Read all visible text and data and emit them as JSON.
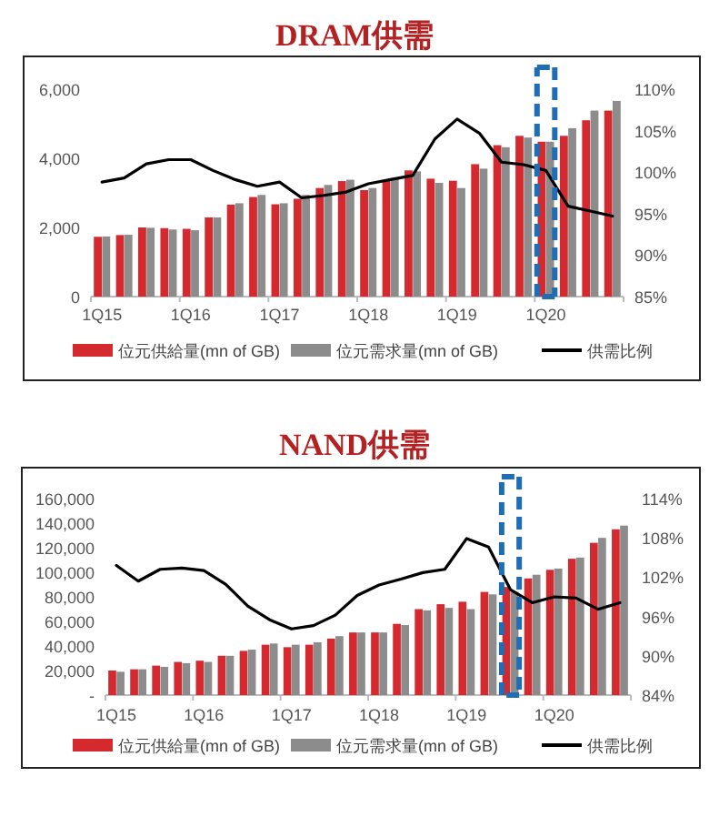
{
  "chart_data": [
    {
      "type": "bar",
      "title": "DRAM供需",
      "categories": [
        "1Q15",
        null,
        null,
        null,
        "1Q16",
        null,
        null,
        null,
        "1Q17",
        null,
        null,
        null,
        "1Q18",
        null,
        null,
        null,
        "1Q19",
        null,
        null,
        null,
        "1Q20",
        null,
        null,
        null
      ],
      "series": [
        {
          "name": "位元供給量(mn of GB)",
          "color": "#d42a2f",
          "values": [
            1730,
            1780,
            2000,
            1980,
            1960,
            2290,
            2660,
            2880,
            2670,
            2830,
            3140,
            3340,
            3080,
            3340,
            3650,
            3410,
            3350,
            3830,
            4380,
            4650,
            4480,
            4650,
            5100,
            5380
          ]
        },
        {
          "name": "位元需求量(mn of GB)",
          "color": "#8c8c8c",
          "values": [
            1740,
            1790,
            1990,
            1940,
            1920,
            2290,
            2700,
            2940,
            2700,
            2940,
            3230,
            3380,
            3140,
            3430,
            3620,
            3290,
            3140,
            3700,
            4320,
            4600,
            4480,
            4870,
            5380,
            5660
          ]
        },
        {
          "name": "供需比例",
          "type": "line",
          "axis": "y2",
          "color": "#000000",
          "values": [
            98.8,
            99.3,
            101.0,
            101.5,
            101.5,
            100.2,
            99.1,
            98.3,
            98.8,
            96.9,
            97.2,
            97.6,
            98.6,
            99.1,
            99.6,
            104.0,
            106.4,
            104.7,
            101.2,
            100.9,
            100.2,
            95.9,
            95.3,
            94.7
          ]
        }
      ],
      "ylim": [
        0,
        6000
      ],
      "yticks": [
        0,
        {
          "value": 2000,
          "label": "2,000"
        },
        {
          "value": 4000,
          "label": "4,000"
        },
        {
          "value": 6000,
          "label": "6,000"
        }
      ],
      "y2lim": [
        85,
        110
      ],
      "y2ticks": [
        {
          "value": 85,
          "label": "85%"
        },
        {
          "value": 90,
          "label": "90%"
        },
        {
          "value": 95,
          "label": "95%"
        },
        {
          "value": 100,
          "label": "100%"
        },
        {
          "value": 105,
          "label": "105%"
        },
        {
          "value": 110,
          "label": "110%"
        }
      ],
      "legend": "bottom"
    },
    {
      "type": "bar",
      "title": "NAND供需",
      "categories": [
        "1Q15",
        null,
        null,
        null,
        "1Q16",
        null,
        null,
        null,
        "1Q17",
        null,
        null,
        null,
        "1Q18",
        null,
        null,
        null,
        "1Q19",
        null,
        null,
        null,
        "1Q20",
        null,
        null,
        null
      ],
      "series": [
        {
          "name": "位元供給量(mn of GB)",
          "color": "#d42a2f",
          "values": [
            20000,
            21000,
            24000,
            27000,
            28000,
            32000,
            36000,
            41000,
            39000,
            41000,
            46000,
            51000,
            51000,
            58000,
            70000,
            74000,
            76000,
            84000,
            88000,
            95000,
            102000,
            111000,
            124000,
            135000
          ]
        },
        {
          "name": "位元需求量(mn of GB)",
          "color": "#8c8c8c",
          "values": [
            19000,
            21000,
            23000,
            26000,
            27000,
            32000,
            37000,
            42000,
            41000,
            43000,
            48000,
            51000,
            51000,
            57000,
            69000,
            71000,
            70000,
            82000,
            84000,
            98000,
            103000,
            112000,
            128000,
            138000
          ]
        },
        {
          "name": "供需比例",
          "type": "line",
          "axis": "y2",
          "color": "#000000",
          "values": [
            103.8,
            101.4,
            103.2,
            103.4,
            103.0,
            100.9,
            97.6,
            95.5,
            94.1,
            94.6,
            96.2,
            99.2,
            100.8,
            101.7,
            102.7,
            103.2,
            107.9,
            106.6,
            100.1,
            98.1,
            99.0,
            98.8,
            97.1,
            98.1
          ]
        }
      ],
      "ylim": [
        0,
        160000
      ],
      "yticks": [
        {
          "value": 0,
          "label": "-"
        },
        {
          "value": 20000,
          "label": "20,000"
        },
        {
          "value": 40000,
          "label": "40,000"
        },
        {
          "value": 60000,
          "label": "60,000"
        },
        {
          "value": 80000,
          "label": "80,000"
        },
        {
          "value": 100000,
          "label": "100,000"
        },
        {
          "value": 120000,
          "label": "120,000"
        },
        {
          "value": 140000,
          "label": "140,000"
        },
        {
          "value": 160000,
          "label": "160,000"
        }
      ],
      "y2lim": [
        84,
        114
      ],
      "y2ticks": [
        {
          "value": 84,
          "label": "84%"
        },
        {
          "value": 90,
          "label": "90%"
        },
        {
          "value": 96,
          "label": "96%"
        },
        {
          "value": 102,
          "label": "102%"
        },
        {
          "value": 108,
          "label": "108%"
        },
        {
          "value": 114,
          "label": "114%"
        }
      ],
      "legend": "bottom"
    }
  ]
}
